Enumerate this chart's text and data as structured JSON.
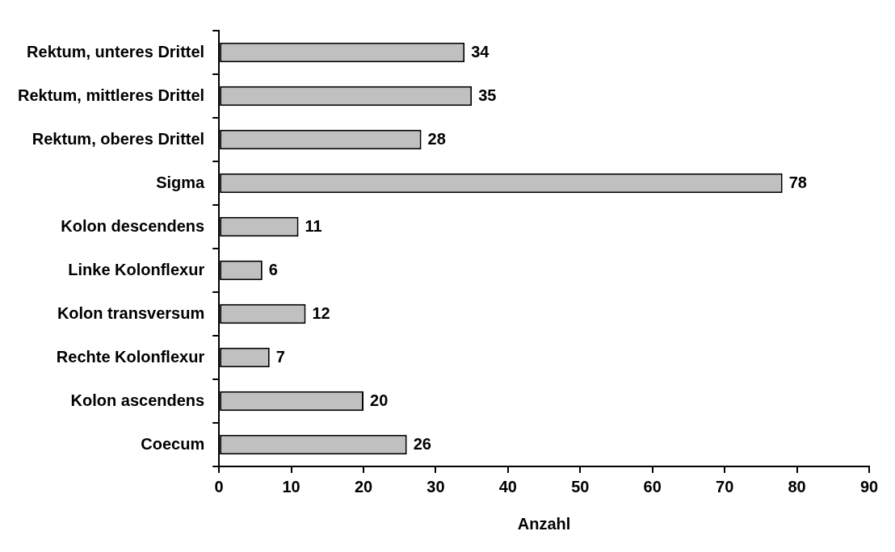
{
  "chart_data": {
    "type": "bar",
    "orientation": "horizontal",
    "xlabel": "Anzahl",
    "categories": [
      "Rektum, unteres Drittel",
      "Rektum, mittleres Drittel",
      "Rektum, oberes Drittel",
      "Sigma",
      "Kolon descendens",
      "Linke Kolonflexur",
      "Kolon transversum",
      "Rechte Kolonflexur",
      "Kolon ascendens",
      "Coecum"
    ],
    "values": [
      34,
      35,
      28,
      78,
      11,
      6,
      12,
      7,
      20,
      26
    ],
    "color": "#c0c0c0",
    "xlim": [
      0,
      90
    ],
    "xticks": [
      0,
      10,
      20,
      30,
      40,
      50,
      60,
      70,
      80,
      90
    ],
    "grid": false,
    "legend": false,
    "data_labels": true
  }
}
